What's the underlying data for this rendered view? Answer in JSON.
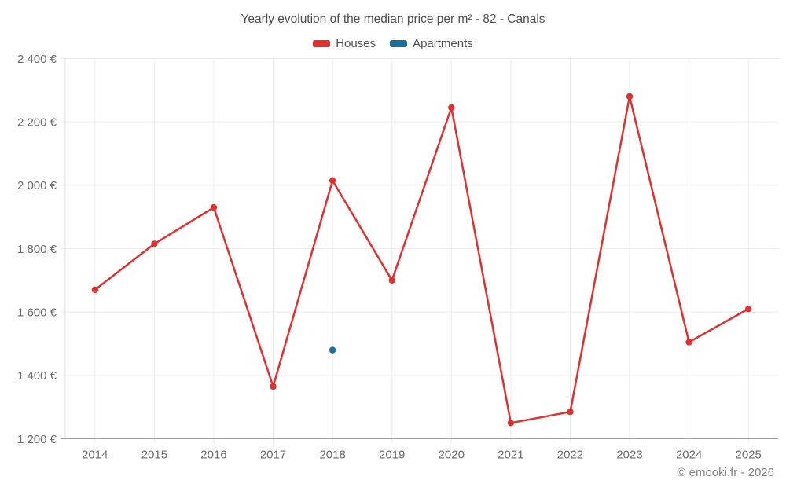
{
  "page": {
    "footer": "© emooki.fr - 2026"
  },
  "chart_data": {
    "type": "line",
    "title": "Yearly evolution of the median price per m² - 82 - Canals",
    "categories": [
      "2014",
      "2015",
      "2016",
      "2017",
      "2018",
      "2019",
      "2020",
      "2021",
      "2022",
      "2023",
      "2024",
      "2025"
    ],
    "series": [
      {
        "name": "Houses",
        "color": "#e03030",
        "values": [
          1670,
          1815,
          1930,
          1365,
          2015,
          1700,
          2245,
          1250,
          1285,
          2280,
          1505,
          1610
        ]
      },
      {
        "name": "Apartments",
        "color": "#1b6d9b",
        "values": [
          null,
          null,
          null,
          null,
          1480,
          null,
          null,
          null,
          null,
          null,
          null,
          null
        ]
      }
    ],
    "xlabel": "",
    "ylabel": "",
    "ylim": [
      1200,
      2400
    ],
    "ytick_step": 200,
    "ytick_labels": [
      "1 200 €",
      "1 400 €",
      "1 600 €",
      "1 800 €",
      "2 000 €",
      "2 200 €",
      "2 400 €"
    ],
    "grid": true,
    "legend_position": "top",
    "currency": "€"
  }
}
